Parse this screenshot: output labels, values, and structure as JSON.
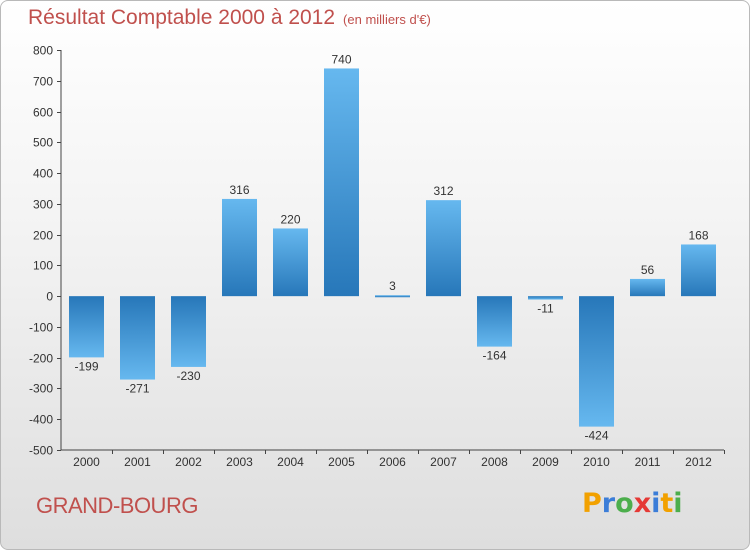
{
  "title": "Résultat Comptable 2000 à 2012",
  "subtitle": "(en milliers d'€)",
  "commune": "GRAND-BOURG",
  "brand": {
    "letters": [
      "P",
      "r",
      "o",
      "x",
      "i",
      "t",
      "i"
    ],
    "colors": [
      "#f2a100",
      "#3b7dd8",
      "#4cae4c",
      "#e53935",
      "#3b7dd8",
      "#f2a100",
      "#4cae4c"
    ]
  },
  "colors": {
    "title": "#c0504d",
    "bar_light": "#62b3ec",
    "bar_dark": "#2878bb"
  },
  "chart_data": {
    "type": "bar",
    "title": "Résultat Comptable 2000 à 2012",
    "subtitle": "(en milliers d'€)",
    "xlabel": "",
    "ylabel": "",
    "categories": [
      "2000",
      "2001",
      "2002",
      "2003",
      "2004",
      "2005",
      "2006",
      "2007",
      "2008",
      "2009",
      "2010",
      "2011",
      "2012"
    ],
    "values": [
      -199,
      -271,
      -230,
      316,
      220,
      740,
      3,
      312,
      -164,
      -11,
      -424,
      56,
      168
    ],
    "labels": [
      "-199",
      "-271",
      "-230",
      "316",
      "220",
      "740",
      "3",
      "312",
      "-164",
      "-11",
      "-424",
      "56",
      "168"
    ],
    "ylim": [
      -500,
      800
    ],
    "yticks": [
      800,
      700,
      600,
      500,
      400,
      300,
      200,
      100,
      0,
      -100,
      -200,
      -300,
      -400,
      -500
    ],
    "grid": false,
    "legend": "none"
  }
}
